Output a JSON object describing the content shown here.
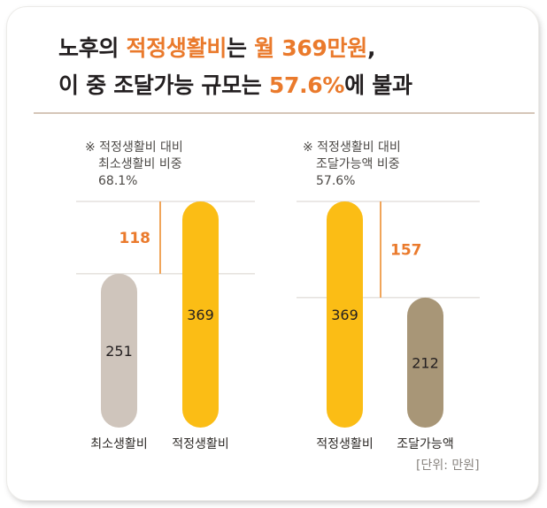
{
  "title": {
    "line1": [
      {
        "text": "노후의 ",
        "hl": false
      },
      {
        "text": "적정생활비",
        "hl": true
      },
      {
        "text": "는 ",
        "hl": false
      },
      {
        "text": "월 369만원",
        "hl": true
      },
      {
        "text": ",",
        "hl": false
      }
    ],
    "line2": [
      {
        "text": "이 중 조달가능 규모는 ",
        "hl": false
      },
      {
        "text": "57.6%",
        "hl": true
      },
      {
        "text": "에 불과",
        "hl": false
      }
    ]
  },
  "notes": [
    {
      "line1": "※ 적정생활비 대비",
      "line2": "최소생활비 비중",
      "line3": "68.1%"
    },
    {
      "line1": "※ 적정생활비 대비",
      "line2": "조달가능액 비중",
      "line3": "57.6%"
    }
  ],
  "unit_label": "[단위: 만원]",
  "colors": {
    "highlight": "#ea7a2c",
    "gold": "#fbbd15",
    "gray": "#cfc5bc",
    "brown": "#a89677",
    "guide": "#d7d2cc",
    "bracket": "#f0a55a"
  },
  "chart_data": [
    {
      "type": "bar",
      "categories": [
        "최소생활비",
        "적정생활비"
      ],
      "values": [
        251,
        369
      ],
      "bar_colors": [
        "#cfc5bc",
        "#fbbd15"
      ],
      "difference": 118,
      "ratio_label": "68.1%",
      "ylim": [
        0,
        369
      ]
    },
    {
      "type": "bar",
      "categories": [
        "적정생활비",
        "조달가능액"
      ],
      "values": [
        369,
        212
      ],
      "bar_colors": [
        "#fbbd15",
        "#a89677"
      ],
      "difference": 157,
      "ratio_label": "57.6%",
      "ylim": [
        0,
        369
      ]
    }
  ]
}
